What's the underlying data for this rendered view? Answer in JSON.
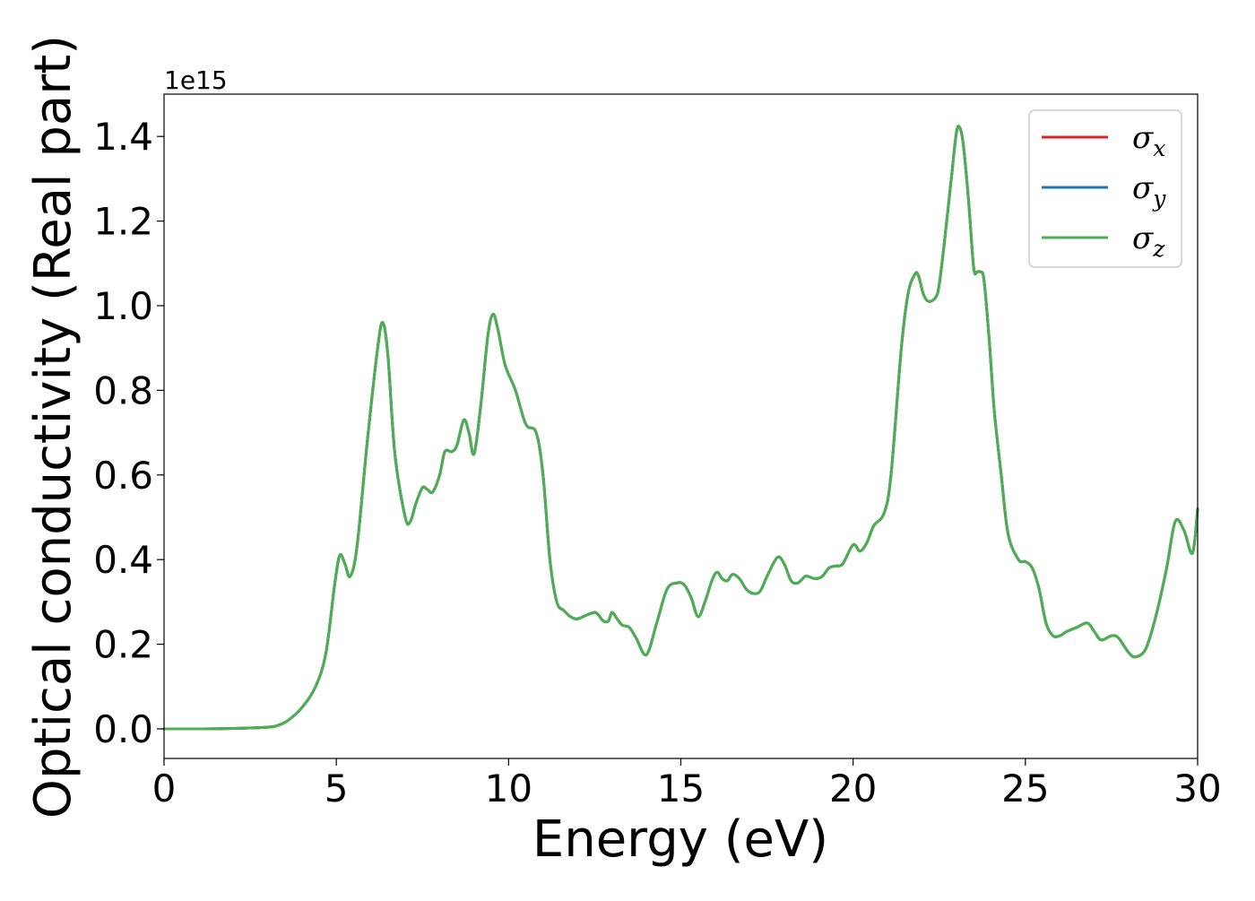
{
  "chart_data": {
    "type": "line",
    "title": "",
    "xlabel": "Energy (eV)",
    "ylabel": "Optical conductivity (Real part)",
    "y_offset_label": "1e15",
    "xlim": [
      0,
      30
    ],
    "ylim": [
      -0.07,
      1.5
    ],
    "x_ticks": [
      0,
      5,
      10,
      15,
      20,
      25,
      30
    ],
    "x_tick_labels": [
      "0",
      "5",
      "10",
      "15",
      "20",
      "25",
      "30"
    ],
    "y_ticks": [
      0.0,
      0.2,
      0.4,
      0.6,
      0.8,
      1.0,
      1.2,
      1.4
    ],
    "y_tick_labels": [
      "0.0",
      "0.2",
      "0.4",
      "0.6",
      "0.8",
      "1.0",
      "1.2",
      "1.4"
    ],
    "grid": false,
    "legend_position": "top-right",
    "series": [
      {
        "name": "σx",
        "subscript": "x",
        "color": "#d62728",
        "ref": "sigma_z"
      },
      {
        "name": "σy",
        "subscript": "y",
        "color": "#1f77b4",
        "ref": "sigma_z"
      },
      {
        "name": "σz",
        "subscript": "z",
        "color": "#4caf50",
        "ref": "sigma_z"
      }
    ],
    "sigma_z": {
      "x": [
        0,
        1,
        2,
        3,
        3.3,
        3.6,
        4.0,
        4.4,
        4.7,
        4.95,
        5.1,
        5.25,
        5.4,
        5.6,
        5.9,
        6.2,
        6.35,
        6.5,
        6.7,
        7.0,
        7.15,
        7.3,
        7.5,
        7.65,
        7.8,
        8.0,
        8.15,
        8.35,
        8.5,
        8.7,
        8.85,
        9.0,
        9.2,
        9.4,
        9.55,
        9.7,
        9.9,
        10.2,
        10.5,
        10.8,
        11.0,
        11.2,
        11.4,
        11.6,
        11.8,
        12.0,
        12.3,
        12.5,
        12.6,
        12.75,
        12.9,
        13.0,
        13.15,
        13.3,
        13.5,
        13.7,
        14.0,
        14.3,
        14.6,
        14.9,
        15.1,
        15.3,
        15.5,
        15.7,
        15.9,
        16.05,
        16.2,
        16.35,
        16.5,
        16.7,
        16.9,
        17.1,
        17.3,
        17.5,
        17.8,
        18.0,
        18.2,
        18.4,
        18.6,
        18.7,
        18.9,
        19.1,
        19.3,
        19.5,
        19.7,
        20.0,
        20.2,
        20.4,
        20.6,
        20.9,
        21.1,
        21.4,
        21.6,
        21.8,
        21.9,
        22.05,
        22.2,
        22.4,
        22.5,
        22.65,
        22.85,
        23.0,
        23.1,
        23.2,
        23.35,
        23.5,
        23.6,
        23.7,
        23.8,
        23.95,
        24.1,
        24.3,
        24.5,
        24.8,
        25.0,
        25.2,
        25.4,
        25.6,
        25.8,
        26.0,
        26.2,
        26.5,
        26.8,
        27.0,
        27.2,
        27.5,
        27.7,
        28.0,
        28.2,
        28.5,
        28.8,
        29.1,
        29.35,
        29.6,
        29.85,
        30.0
      ],
      "y": [
        0.0,
        0.0,
        0.001,
        0.004,
        0.008,
        0.02,
        0.05,
        0.1,
        0.18,
        0.34,
        0.41,
        0.39,
        0.36,
        0.43,
        0.68,
        0.9,
        0.96,
        0.88,
        0.65,
        0.5,
        0.49,
        0.53,
        0.57,
        0.565,
        0.56,
        0.6,
        0.655,
        0.655,
        0.67,
        0.73,
        0.7,
        0.65,
        0.77,
        0.93,
        0.98,
        0.94,
        0.86,
        0.8,
        0.72,
        0.7,
        0.6,
        0.4,
        0.3,
        0.28,
        0.265,
        0.26,
        0.27,
        0.275,
        0.27,
        0.255,
        0.255,
        0.275,
        0.26,
        0.245,
        0.24,
        0.215,
        0.175,
        0.25,
        0.33,
        0.345,
        0.34,
        0.31,
        0.265,
        0.3,
        0.35,
        0.37,
        0.355,
        0.35,
        0.365,
        0.355,
        0.33,
        0.32,
        0.325,
        0.36,
        0.405,
        0.39,
        0.35,
        0.345,
        0.36,
        0.36,
        0.355,
        0.36,
        0.38,
        0.385,
        0.39,
        0.435,
        0.42,
        0.44,
        0.48,
        0.51,
        0.6,
        0.9,
        1.03,
        1.075,
        1.07,
        1.025,
        1.01,
        1.02,
        1.05,
        1.15,
        1.3,
        1.41,
        1.42,
        1.38,
        1.25,
        1.09,
        1.08,
        1.08,
        1.06,
        0.92,
        0.75,
        0.6,
        0.46,
        0.4,
        0.395,
        0.38,
        0.33,
        0.25,
        0.22,
        0.22,
        0.23,
        0.24,
        0.25,
        0.23,
        0.21,
        0.22,
        0.215,
        0.18,
        0.17,
        0.19,
        0.27,
        0.38,
        0.49,
        0.47,
        0.415,
        0.52
      ]
    }
  }
}
